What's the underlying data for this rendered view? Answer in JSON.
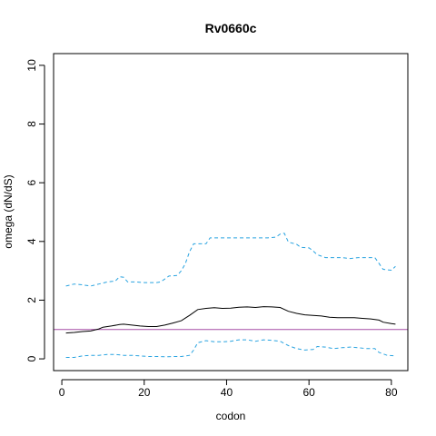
{
  "chart_data": {
    "type": "line",
    "title": "Rv0660c",
    "xlabel": "codon",
    "ylabel": "omega (dN/dS)",
    "xlim": [
      -2,
      84
    ],
    "ylim": [
      -0.4,
      10.4
    ],
    "x_ticks": [
      0,
      20,
      40,
      60,
      80
    ],
    "y_ticks": [
      0,
      2,
      4,
      6,
      8,
      10
    ],
    "grid": false,
    "legend": "none",
    "reference_line": {
      "y": 1,
      "color": "#a64ca6"
    },
    "series": [
      {
        "style": "solid",
        "color": "#000000",
        "points": [
          [
            1,
            0.88
          ],
          [
            3,
            0.9
          ],
          [
            5,
            0.93
          ],
          [
            7,
            0.95
          ],
          [
            9,
            1.02
          ],
          [
            10,
            1.08
          ],
          [
            12,
            1.12
          ],
          [
            14,
            1.17
          ],
          [
            15,
            1.18
          ],
          [
            17,
            1.15
          ],
          [
            19,
            1.12
          ],
          [
            21,
            1.1
          ],
          [
            23,
            1.1
          ],
          [
            25,
            1.15
          ],
          [
            27,
            1.22
          ],
          [
            29,
            1.3
          ],
          [
            31,
            1.48
          ],
          [
            33,
            1.68
          ],
          [
            35,
            1.72
          ],
          [
            37,
            1.74
          ],
          [
            39,
            1.72
          ],
          [
            41,
            1.73
          ],
          [
            43,
            1.76
          ],
          [
            45,
            1.77
          ],
          [
            47,
            1.75
          ],
          [
            49,
            1.78
          ],
          [
            51,
            1.77
          ],
          [
            53,
            1.75
          ],
          [
            55,
            1.62
          ],
          [
            57,
            1.55
          ],
          [
            59,
            1.5
          ],
          [
            61,
            1.48
          ],
          [
            63,
            1.46
          ],
          [
            65,
            1.42
          ],
          [
            67,
            1.4
          ],
          [
            69,
            1.4
          ],
          [
            71,
            1.4
          ],
          [
            73,
            1.38
          ],
          [
            75,
            1.36
          ],
          [
            77,
            1.32
          ],
          [
            78,
            1.25
          ],
          [
            80,
            1.2
          ],
          [
            81,
            1.18
          ]
        ]
      },
      {
        "style": "dashed",
        "color": "#29a3e0",
        "points": [
          [
            1,
            2.48
          ],
          [
            3,
            2.55
          ],
          [
            5,
            2.52
          ],
          [
            7,
            2.48
          ],
          [
            9,
            2.55
          ],
          [
            11,
            2.62
          ],
          [
            13,
            2.65
          ],
          [
            14,
            2.8
          ],
          [
            15,
            2.78
          ],
          [
            16,
            2.62
          ],
          [
            18,
            2.62
          ],
          [
            20,
            2.6
          ],
          [
            22,
            2.6
          ],
          [
            23,
            2.6
          ],
          [
            24,
            2.62
          ],
          [
            26,
            2.82
          ],
          [
            28,
            2.84
          ],
          [
            29,
            3.0
          ],
          [
            30,
            3.25
          ],
          [
            31,
            3.65
          ],
          [
            32,
            3.92
          ],
          [
            34,
            3.92
          ],
          [
            35,
            3.92
          ],
          [
            36,
            4.12
          ],
          [
            38,
            4.12
          ],
          [
            40,
            4.12
          ],
          [
            42,
            4.12
          ],
          [
            44,
            4.12
          ],
          [
            46,
            4.12
          ],
          [
            48,
            4.12
          ],
          [
            50,
            4.12
          ],
          [
            52,
            4.15
          ],
          [
            53,
            4.25
          ],
          [
            54,
            4.28
          ],
          [
            55,
            3.98
          ],
          [
            57,
            3.9
          ],
          [
            58,
            3.8
          ],
          [
            60,
            3.78
          ],
          [
            61,
            3.68
          ],
          [
            62,
            3.55
          ],
          [
            64,
            3.45
          ],
          [
            66,
            3.45
          ],
          [
            68,
            3.45
          ],
          [
            70,
            3.42
          ],
          [
            72,
            3.45
          ],
          [
            74,
            3.45
          ],
          [
            76,
            3.45
          ],
          [
            77,
            3.25
          ],
          [
            78,
            3.05
          ],
          [
            80,
            3.02
          ],
          [
            81,
            3.15
          ]
        ]
      },
      {
        "style": "dashed",
        "color": "#29a3e0",
        "points": [
          [
            1,
            0.05
          ],
          [
            3,
            0.05
          ],
          [
            5,
            0.1
          ],
          [
            7,
            0.12
          ],
          [
            9,
            0.12
          ],
          [
            11,
            0.15
          ],
          [
            13,
            0.15
          ],
          [
            15,
            0.12
          ],
          [
            17,
            0.12
          ],
          [
            19,
            0.1
          ],
          [
            21,
            0.08
          ],
          [
            23,
            0.08
          ],
          [
            25,
            0.07
          ],
          [
            27,
            0.08
          ],
          [
            29,
            0.08
          ],
          [
            31,
            0.12
          ],
          [
            32,
            0.3
          ],
          [
            33,
            0.55
          ],
          [
            35,
            0.62
          ],
          [
            37,
            0.58
          ],
          [
            39,
            0.58
          ],
          [
            41,
            0.6
          ],
          [
            43,
            0.65
          ],
          [
            45,
            0.65
          ],
          [
            47,
            0.6
          ],
          [
            49,
            0.65
          ],
          [
            51,
            0.63
          ],
          [
            53,
            0.6
          ],
          [
            55,
            0.45
          ],
          [
            57,
            0.35
          ],
          [
            59,
            0.3
          ],
          [
            61,
            0.32
          ],
          [
            62,
            0.42
          ],
          [
            64,
            0.4
          ],
          [
            66,
            0.35
          ],
          [
            68,
            0.38
          ],
          [
            70,
            0.4
          ],
          [
            72,
            0.38
          ],
          [
            74,
            0.35
          ],
          [
            76,
            0.35
          ],
          [
            77,
            0.22
          ],
          [
            79,
            0.12
          ],
          [
            81,
            0.1
          ]
        ]
      }
    ]
  }
}
